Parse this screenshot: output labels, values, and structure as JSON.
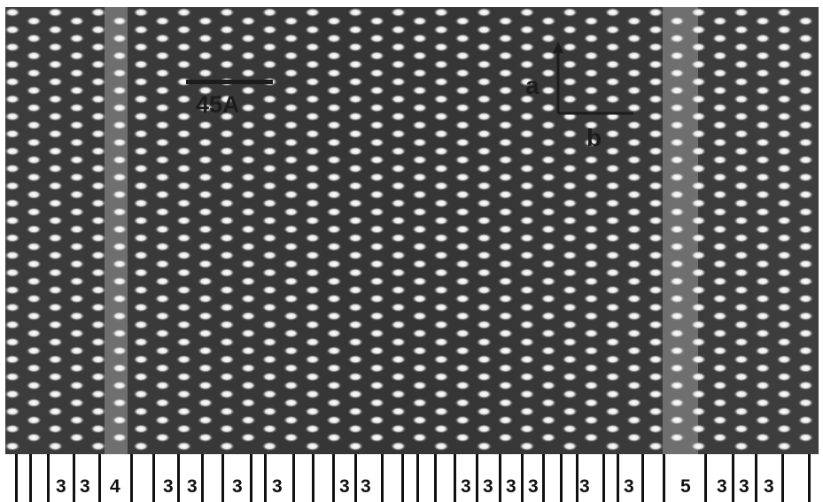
{
  "image": {
    "kind": "lattice-image micrograph",
    "scale_bar": {
      "label": "45A"
    },
    "axes_indicator": {
      "vertical_label": "a",
      "horizontal_label": "b"
    },
    "colors": {
      "background": "#3a3a3a",
      "bright_spot": "#f2f2f2",
      "dark_marks": "#1c1c1c"
    }
  },
  "stacking_ruler": {
    "numbers": [
      "3",
      "3",
      "4",
      "3",
      "3",
      "3",
      "3",
      "3",
      "3",
      "3",
      "3",
      "3",
      "3",
      "3",
      "3",
      "5",
      "3",
      "3",
      "3"
    ]
  }
}
